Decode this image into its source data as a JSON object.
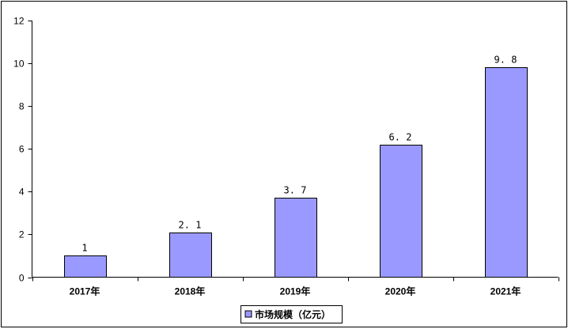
{
  "chart_data": {
    "type": "bar",
    "categories": [
      "2017年",
      "2018年",
      "2019年",
      "2020年",
      "2021年"
    ],
    "series": [
      {
        "name": "市场规模（亿元）",
        "values": [
          1,
          2.1,
          3.7,
          6.2,
          9.8
        ],
        "color": "#9999ff"
      }
    ],
    "data_labels": [
      "1",
      "2. 1",
      "3. 7",
      "6. 2",
      "9. 8"
    ],
    "title": "",
    "xlabel": "",
    "ylabel": "",
    "ylim": [
      0,
      12
    ],
    "yticks": [
      0,
      2,
      4,
      6,
      8,
      10,
      12
    ],
    "grid": false,
    "legend_position": "bottom-center",
    "colors": {
      "bar": "#9999ff",
      "bar_border": "#000000",
      "frame": "#000000"
    }
  }
}
